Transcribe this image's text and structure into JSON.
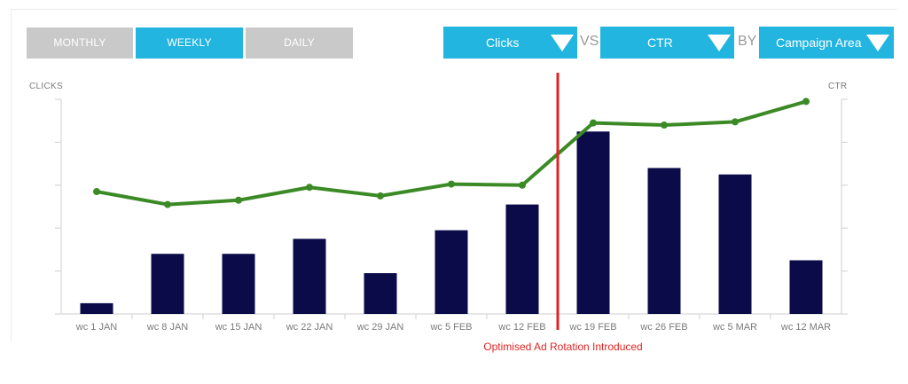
{
  "tabs": [
    {
      "label": "MONTHLY",
      "active": false
    },
    {
      "label": "WEEKLY",
      "active": true
    },
    {
      "label": "DAILY",
      "active": false
    }
  ],
  "selectors": {
    "metric1": "Clicks",
    "vs": "VS",
    "metric2": "CTR",
    "by": "BY",
    "dimension": "Campaign Area"
  },
  "colors": {
    "bars": "#0b0b4a",
    "line": "#3b8a26",
    "marker": "#e02424",
    "accent": "#22b5e0"
  },
  "chart_data": {
    "type": "bar",
    "categories": [
      "wc 1 JAN",
      "wc 8 JAN",
      "wc 15 JAN",
      "wc 22 JAN",
      "wc 29 JAN",
      "wc 5 FEB",
      "wc 12 FEB",
      "wc 19 FEB",
      "wc 26 FEB",
      "wc 5 MAR",
      "wc 12 MAR"
    ],
    "series": [
      {
        "name": "Clicks",
        "type": "bar",
        "axis": "left",
        "values": [
          2.5,
          14,
          14,
          17.5,
          9.5,
          19.5,
          25.5,
          42.5,
          34,
          32.5,
          12.5
        ]
      },
      {
        "name": "CTR",
        "type": "line",
        "axis": "right",
        "values": [
          57,
          51,
          53,
          59,
          55,
          60.5,
          60,
          89,
          88,
          89.5,
          99
        ]
      }
    ],
    "ylabel": "CLICKS",
    "y2label": "CTR",
    "ylim": [
      0,
      50
    ],
    "y2lim": [
      0,
      100
    ],
    "annotation": {
      "between": [
        "wc 12 FEB",
        "wc 19 FEB"
      ],
      "text": "Optimised Ad Rotation Introduced"
    }
  }
}
